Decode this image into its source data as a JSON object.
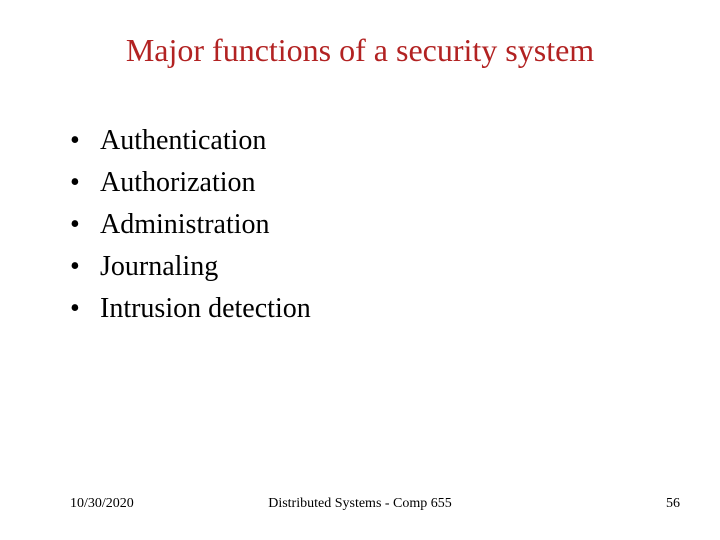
{
  "title": {
    "text": "Major functions of a security system",
    "color": "#b22222",
    "fontsize": 32
  },
  "bullets": {
    "items": [
      "Authentication",
      "Authorization",
      "Administration",
      "Journaling",
      "Intrusion detection"
    ],
    "color": "#000000",
    "fontsize": 28,
    "marker": "•"
  },
  "footer": {
    "date": "10/30/2020",
    "center": "Distributed Systems - Comp 655",
    "page": "56",
    "color": "#000000",
    "fontsize": 14
  },
  "background_color": "#ffffff"
}
